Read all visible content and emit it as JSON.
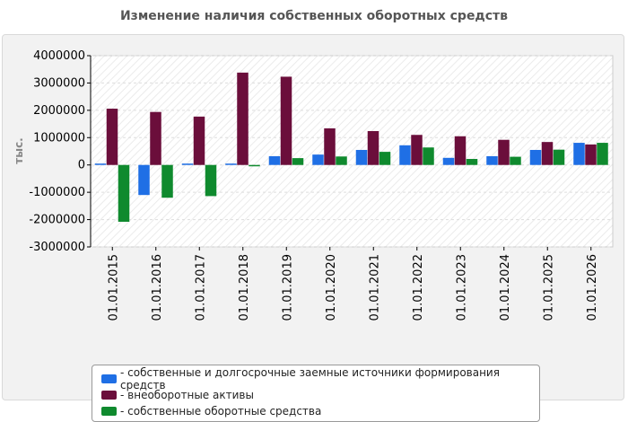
{
  "title": "Изменение наличия собственных оборотных средств",
  "colors": {
    "series0": "#1f6fe5",
    "series1": "#6b0e3b",
    "series2": "#0f8a2e"
  },
  "chart_data": {
    "type": "bar",
    "title": "Изменение наличия собственных оборотных средств",
    "ylabel": "тыс.",
    "xlabel": "",
    "ylim": [
      -3000000,
      4000000
    ],
    "yticks": [
      4000000,
      3000000,
      2000000,
      1000000,
      0,
      -1000000,
      -2000000,
      -3000000
    ],
    "grid": true,
    "legend_position": "bottom",
    "categories": [
      "01.01.2015",
      "01.01.2016",
      "01.01.2017",
      "01.01.2018",
      "01.01.2019",
      "01.01.2020",
      "01.01.2021",
      "01.01.2022",
      "01.01.2023",
      "01.01.2024",
      "01.01.2025",
      "01.01.2026"
    ],
    "series": [
      {
        "name": "- собственные и долгосрочные заемные источники формирования средств",
        "values": [
          50000,
          -1100000,
          50000,
          50000,
          320000,
          380000,
          550000,
          720000,
          260000,
          320000,
          550000,
          810000
        ]
      },
      {
        "name": "- внеоборотные активы",
        "values": [
          2060000,
          1940000,
          1770000,
          3380000,
          3230000,
          1340000,
          1240000,
          1100000,
          1050000,
          920000,
          840000,
          750000
        ]
      },
      {
        "name": "- собственные оборотные средства",
        "values": [
          -2080000,
          -1200000,
          -1140000,
          -50000,
          250000,
          310000,
          480000,
          640000,
          220000,
          300000,
          560000,
          810000
        ]
      }
    ]
  }
}
